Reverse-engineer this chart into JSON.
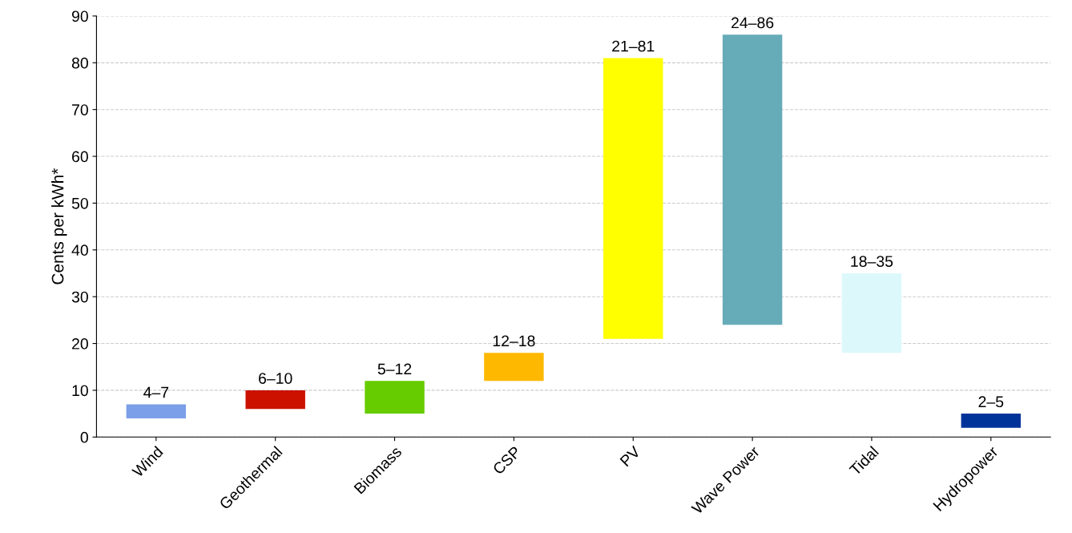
{
  "chart_data": {
    "type": "bar",
    "ylabel": "Cents per kWh*",
    "categories": [
      "Wind",
      "Geothermal",
      "Biomass",
      "CSP",
      "PV",
      "Wave Power",
      "Tidal",
      "Hydropower"
    ],
    "base": [
      4,
      6,
      5,
      12,
      21,
      24,
      18,
      2
    ],
    "values": [
      3,
      4,
      7,
      6,
      60,
      62,
      17,
      3
    ],
    "value_labels": [
      "4–7",
      "6–10",
      "5–12",
      "12–18",
      "21–81",
      "24–86",
      "18–35",
      "2–5"
    ],
    "colors": [
      "#7b9fe8",
      "#cc1100",
      "#66cc00",
      "#ffb800",
      "#ffff00",
      "#66abb8",
      "#ddf8fb",
      "#003399"
    ],
    "ylim": [
      0,
      90
    ],
    "yticks": [
      0,
      10,
      20,
      30,
      40,
      50,
      60,
      70,
      80,
      90
    ],
    "grid": "y",
    "legend": false
  }
}
